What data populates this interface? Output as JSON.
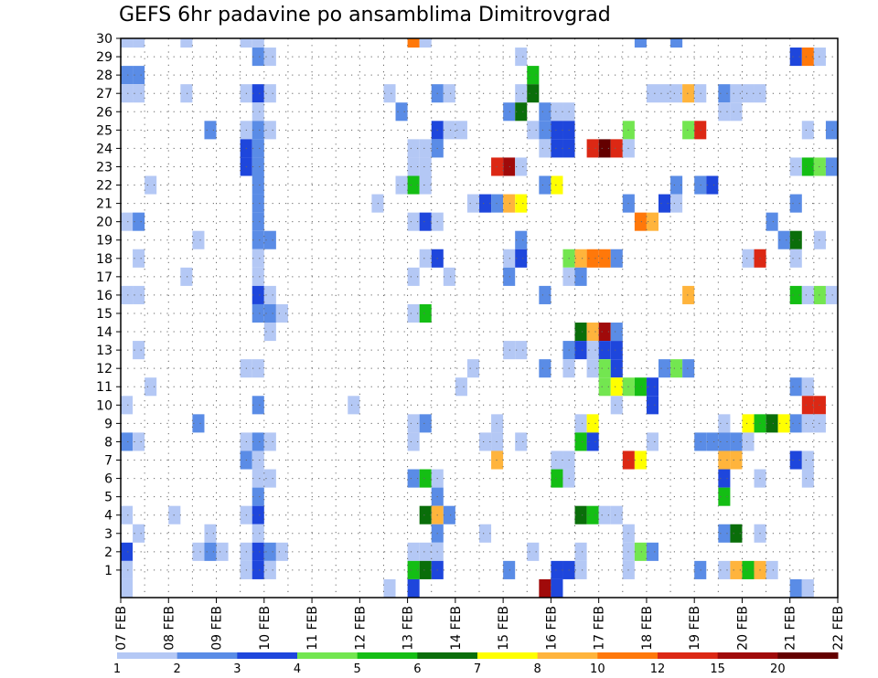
{
  "chart_data": {
    "type": "heatmap",
    "title": "GEFS 6hr padavine po ansamblima Dimitrovgrad",
    "xlabel": "",
    "ylabel": "",
    "y_ticks": [
      "1",
      "2",
      "3",
      "4",
      "5",
      "6",
      "7",
      "8",
      "9",
      "10",
      "11",
      "12",
      "13",
      "14",
      "15",
      "16",
      "17",
      "18",
      "19",
      "20",
      "21",
      "22",
      "23",
      "24",
      "25",
      "26",
      "27",
      "28",
      "29",
      "30"
    ],
    "x_ticks": [
      "07 FEB",
      "08 FEB",
      "09 FEB",
      "10 FEB",
      "11 FEB",
      "12 FEB",
      "13 FEB",
      "14 FEB",
      "15 FEB",
      "16 FEB",
      "17 FEB",
      "18 FEB",
      "19 FEB",
      "20 FEB",
      "21 FEB",
      "22 FEB"
    ],
    "time_steps": 60,
    "steps_per_day": 4,
    "members": 30,
    "legend": {
      "levels": [
        "1",
        "2",
        "3",
        "4",
        "5",
        "6",
        "7",
        "8",
        "10",
        "12",
        "15",
        "20"
      ],
      "colors": [
        "#b4c8f5",
        "#5a8ce6",
        "#1e46dc",
        "#73e650",
        "#14be14",
        "#0a6e0a",
        "#ffff00",
        "#ffb43c",
        "#ff780a",
        "#dc2814",
        "#a00a0a",
        "#640000"
      ]
    },
    "grid": "dotted",
    "cells": [
      [
        30,
        0,
        1
      ],
      [
        30,
        1,
        1
      ],
      [
        30,
        5,
        1
      ],
      [
        30,
        10,
        1
      ],
      [
        30,
        11,
        1
      ],
      [
        30,
        24,
        9
      ],
      [
        30,
        25,
        1
      ],
      [
        30,
        43,
        2
      ],
      [
        30,
        46,
        2
      ],
      [
        29,
        11,
        2
      ],
      [
        29,
        12,
        1
      ],
      [
        29,
        33,
        1
      ],
      [
        29,
        56,
        3
      ],
      [
        29,
        57,
        9
      ],
      [
        29,
        58,
        1
      ],
      [
        28,
        0,
        2
      ],
      [
        28,
        1,
        2
      ],
      [
        28,
        34,
        5
      ],
      [
        27,
        0,
        1
      ],
      [
        27,
        1,
        1
      ],
      [
        27,
        5,
        1
      ],
      [
        27,
        10,
        1
      ],
      [
        27,
        11,
        3
      ],
      [
        27,
        12,
        1
      ],
      [
        27,
        22,
        1
      ],
      [
        27,
        26,
        2
      ],
      [
        27,
        27,
        1
      ],
      [
        27,
        33,
        1
      ],
      [
        27,
        34,
        6
      ],
      [
        27,
        44,
        1
      ],
      [
        27,
        45,
        1
      ],
      [
        27,
        46,
        1
      ],
      [
        27,
        47,
        8
      ],
      [
        27,
        48,
        1
      ],
      [
        27,
        50,
        2
      ],
      [
        27,
        51,
        1
      ],
      [
        27,
        52,
        1
      ],
      [
        27,
        53,
        1
      ],
      [
        26,
        11,
        1
      ],
      [
        26,
        23,
        2
      ],
      [
        26,
        32,
        2
      ],
      [
        26,
        33,
        6
      ],
      [
        26,
        35,
        2
      ],
      [
        26,
        36,
        1
      ],
      [
        26,
        37,
        1
      ],
      [
        26,
        50,
        1
      ],
      [
        26,
        51,
        1
      ],
      [
        25,
        7,
        2
      ],
      [
        25,
        10,
        1
      ],
      [
        25,
        11,
        2
      ],
      [
        25,
        12,
        1
      ],
      [
        25,
        26,
        3
      ],
      [
        25,
        27,
        1
      ],
      [
        25,
        28,
        1
      ],
      [
        25,
        34,
        1
      ],
      [
        25,
        35,
        2
      ],
      [
        25,
        36,
        3
      ],
      [
        25,
        37,
        3
      ],
      [
        25,
        42,
        4
      ],
      [
        25,
        47,
        4
      ],
      [
        25,
        48,
        10
      ],
      [
        25,
        57,
        1
      ],
      [
        25,
        59,
        2
      ],
      [
        24,
        10,
        3
      ],
      [
        24,
        11,
        2
      ],
      [
        24,
        24,
        1
      ],
      [
        24,
        25,
        1
      ],
      [
        24,
        26,
        2
      ],
      [
        24,
        35,
        1
      ],
      [
        24,
        36,
        3
      ],
      [
        24,
        37,
        3
      ],
      [
        24,
        39,
        10
      ],
      [
        24,
        40,
        12
      ],
      [
        24,
        41,
        10
      ],
      [
        24,
        42,
        1
      ],
      [
        23,
        10,
        3
      ],
      [
        23,
        11,
        2
      ],
      [
        23,
        24,
        1
      ],
      [
        23,
        25,
        1
      ],
      [
        23,
        31,
        10
      ],
      [
        23,
        32,
        11
      ],
      [
        23,
        33,
        1
      ],
      [
        23,
        56,
        1
      ],
      [
        23,
        57,
        5
      ],
      [
        23,
        58,
        4
      ],
      [
        23,
        59,
        2
      ],
      [
        22,
        2,
        1
      ],
      [
        22,
        11,
        2
      ],
      [
        22,
        23,
        1
      ],
      [
        22,
        24,
        5
      ],
      [
        22,
        25,
        1
      ],
      [
        22,
        35,
        2
      ],
      [
        22,
        36,
        7
      ],
      [
        22,
        46,
        2
      ],
      [
        22,
        48,
        2
      ],
      [
        22,
        49,
        3
      ],
      [
        21,
        11,
        2
      ],
      [
        21,
        21,
        1
      ],
      [
        21,
        29,
        1
      ],
      [
        21,
        30,
        3
      ],
      [
        21,
        31,
        2
      ],
      [
        21,
        32,
        8
      ],
      [
        21,
        33,
        7
      ],
      [
        21,
        42,
        2
      ],
      [
        21,
        45,
        3
      ],
      [
        21,
        46,
        1
      ],
      [
        21,
        56,
        2
      ],
      [
        20,
        0,
        1
      ],
      [
        20,
        1,
        2
      ],
      [
        20,
        11,
        2
      ],
      [
        20,
        24,
        1
      ],
      [
        20,
        25,
        3
      ],
      [
        20,
        26,
        1
      ],
      [
        20,
        43,
        9
      ],
      [
        20,
        44,
        8
      ],
      [
        20,
        54,
        2
      ],
      [
        19,
        6,
        1
      ],
      [
        19,
        11,
        2
      ],
      [
        19,
        12,
        2
      ],
      [
        19,
        33,
        2
      ],
      [
        19,
        55,
        2
      ],
      [
        19,
        56,
        6
      ],
      [
        19,
        58,
        1
      ],
      [
        18,
        1,
        1
      ],
      [
        18,
        11,
        1
      ],
      [
        18,
        25,
        1
      ],
      [
        18,
        26,
        3
      ],
      [
        18,
        32,
        1
      ],
      [
        18,
        33,
        3
      ],
      [
        18,
        37,
        4
      ],
      [
        18,
        38,
        8
      ],
      [
        18,
        39,
        9
      ],
      [
        18,
        40,
        9
      ],
      [
        18,
        41,
        2
      ],
      [
        18,
        52,
        1
      ],
      [
        18,
        53,
        10
      ],
      [
        18,
        56,
        1
      ],
      [
        17,
        5,
        1
      ],
      [
        17,
        11,
        1
      ],
      [
        17,
        24,
        1
      ],
      [
        17,
        27,
        1
      ],
      [
        17,
        32,
        2
      ],
      [
        17,
        37,
        1
      ],
      [
        17,
        38,
        2
      ],
      [
        16,
        0,
        1
      ],
      [
        16,
        1,
        1
      ],
      [
        16,
        11,
        3
      ],
      [
        16,
        12,
        1
      ],
      [
        16,
        35,
        2
      ],
      [
        16,
        47,
        8
      ],
      [
        16,
        56,
        5
      ],
      [
        16,
        57,
        1
      ],
      [
        16,
        58,
        4
      ],
      [
        16,
        59,
        1
      ],
      [
        15,
        11,
        2
      ],
      [
        15,
        12,
        2
      ],
      [
        15,
        13,
        1
      ],
      [
        15,
        24,
        1
      ],
      [
        15,
        25,
        5
      ],
      [
        14,
        12,
        1
      ],
      [
        14,
        38,
        6
      ],
      [
        14,
        39,
        8
      ],
      [
        14,
        40,
        11
      ],
      [
        14,
        41,
        2
      ],
      [
        13,
        1,
        1
      ],
      [
        13,
        32,
        1
      ],
      [
        13,
        33,
        1
      ],
      [
        13,
        37,
        2
      ],
      [
        13,
        38,
        3
      ],
      [
        13,
        39,
        1
      ],
      [
        13,
        40,
        3
      ],
      [
        13,
        41,
        3
      ],
      [
        12,
        10,
        1
      ],
      [
        12,
        11,
        1
      ],
      [
        12,
        29,
        1
      ],
      [
        12,
        35,
        2
      ],
      [
        12,
        37,
        1
      ],
      [
        12,
        39,
        1
      ],
      [
        12,
        40,
        4
      ],
      [
        12,
        41,
        3
      ],
      [
        12,
        45,
        2
      ],
      [
        12,
        46,
        4
      ],
      [
        12,
        47,
        2
      ],
      [
        11,
        2,
        1
      ],
      [
        11,
        28,
        1
      ],
      [
        11,
        40,
        4
      ],
      [
        11,
        41,
        7
      ],
      [
        11,
        42,
        4
      ],
      [
        11,
        43,
        5
      ],
      [
        11,
        44,
        3
      ],
      [
        11,
        56,
        2
      ],
      [
        11,
        57,
        1
      ],
      [
        10,
        0,
        1
      ],
      [
        10,
        11,
        2
      ],
      [
        10,
        19,
        1
      ],
      [
        10,
        41,
        1
      ],
      [
        10,
        44,
        3
      ],
      [
        10,
        57,
        10
      ],
      [
        10,
        58,
        10
      ],
      [
        9,
        6,
        2
      ],
      [
        9,
        24,
        1
      ],
      [
        9,
        25,
        2
      ],
      [
        9,
        31,
        1
      ],
      [
        9,
        38,
        1
      ],
      [
        9,
        39,
        7
      ],
      [
        9,
        50,
        1
      ],
      [
        9,
        52,
        7
      ],
      [
        9,
        53,
        5
      ],
      [
        9,
        54,
        6
      ],
      [
        9,
        55,
        7
      ],
      [
        9,
        56,
        2
      ],
      [
        9,
        57,
        1
      ],
      [
        9,
        58,
        1
      ],
      [
        8,
        0,
        2
      ],
      [
        8,
        1,
        1
      ],
      [
        8,
        10,
        1
      ],
      [
        8,
        11,
        2
      ],
      [
        8,
        12,
        1
      ],
      [
        8,
        24,
        1
      ],
      [
        8,
        30,
        1
      ],
      [
        8,
        31,
        1
      ],
      [
        8,
        33,
        1
      ],
      [
        8,
        38,
        5
      ],
      [
        8,
        39,
        3
      ],
      [
        8,
        44,
        1
      ],
      [
        8,
        48,
        2
      ],
      [
        8,
        49,
        2
      ],
      [
        8,
        50,
        2
      ],
      [
        8,
        51,
        2
      ],
      [
        8,
        52,
        1
      ],
      [
        7,
        10,
        2
      ],
      [
        7,
        11,
        1
      ],
      [
        7,
        31,
        8
      ],
      [
        7,
        36,
        1
      ],
      [
        7,
        37,
        1
      ],
      [
        7,
        42,
        10
      ],
      [
        7,
        43,
        7
      ],
      [
        7,
        50,
        8
      ],
      [
        7,
        51,
        8
      ],
      [
        7,
        56,
        3
      ],
      [
        7,
        57,
        1
      ],
      [
        6,
        11,
        1
      ],
      [
        6,
        12,
        1
      ],
      [
        6,
        24,
        2
      ],
      [
        6,
        25,
        5
      ],
      [
        6,
        26,
        1
      ],
      [
        6,
        36,
        5
      ],
      [
        6,
        37,
        1
      ],
      [
        6,
        50,
        3
      ],
      [
        6,
        53,
        1
      ],
      [
        6,
        57,
        1
      ],
      [
        5,
        11,
        2
      ],
      [
        5,
        26,
        2
      ],
      [
        5,
        50,
        5
      ],
      [
        4,
        0,
        1
      ],
      [
        4,
        4,
        1
      ],
      [
        4,
        10,
        1
      ],
      [
        4,
        11,
        3
      ],
      [
        4,
        25,
        6
      ],
      [
        4,
        26,
        8
      ],
      [
        4,
        27,
        2
      ],
      [
        4,
        38,
        6
      ],
      [
        4,
        39,
        5
      ],
      [
        4,
        40,
        1
      ],
      [
        4,
        41,
        1
      ],
      [
        3,
        1,
        1
      ],
      [
        3,
        7,
        1
      ],
      [
        3,
        11,
        1
      ],
      [
        3,
        26,
        2
      ],
      [
        3,
        30,
        1
      ],
      [
        3,
        42,
        1
      ],
      [
        3,
        50,
        2
      ],
      [
        3,
        51,
        6
      ],
      [
        3,
        53,
        1
      ],
      [
        2,
        0,
        3
      ],
      [
        2,
        6,
        1
      ],
      [
        2,
        7,
        2
      ],
      [
        2,
        8,
        1
      ],
      [
        2,
        10,
        1
      ],
      [
        2,
        11,
        3
      ],
      [
        2,
        12,
        2
      ],
      [
        2,
        13,
        1
      ],
      [
        2,
        24,
        1
      ],
      [
        2,
        25,
        1
      ],
      [
        2,
        26,
        1
      ],
      [
        2,
        34,
        1
      ],
      [
        2,
        38,
        1
      ],
      [
        2,
        42,
        1
      ],
      [
        2,
        43,
        4
      ],
      [
        2,
        44,
        2
      ],
      [
        1,
        0,
        1
      ],
      [
        1,
        10,
        1
      ],
      [
        1,
        11,
        3
      ],
      [
        1,
        12,
        1
      ],
      [
        1,
        24,
        5
      ],
      [
        1,
        25,
        6
      ],
      [
        1,
        26,
        3
      ],
      [
        1,
        32,
        2
      ],
      [
        1,
        36,
        3
      ],
      [
        1,
        37,
        3
      ],
      [
        1,
        38,
        1
      ],
      [
        1,
        42,
        1
      ],
      [
        1,
        48,
        2
      ],
      [
        1,
        50,
        1
      ],
      [
        1,
        51,
        8
      ],
      [
        1,
        52,
        5
      ],
      [
        1,
        53,
        8
      ],
      [
        1,
        54,
        1
      ],
      [
        0,
        0,
        1
      ],
      [
        0,
        22,
        1
      ],
      [
        0,
        24,
        3
      ],
      [
        0,
        35,
        11
      ],
      [
        0,
        36,
        3
      ],
      [
        0,
        56,
        2
      ],
      [
        0,
        57,
        1
      ]
    ]
  }
}
